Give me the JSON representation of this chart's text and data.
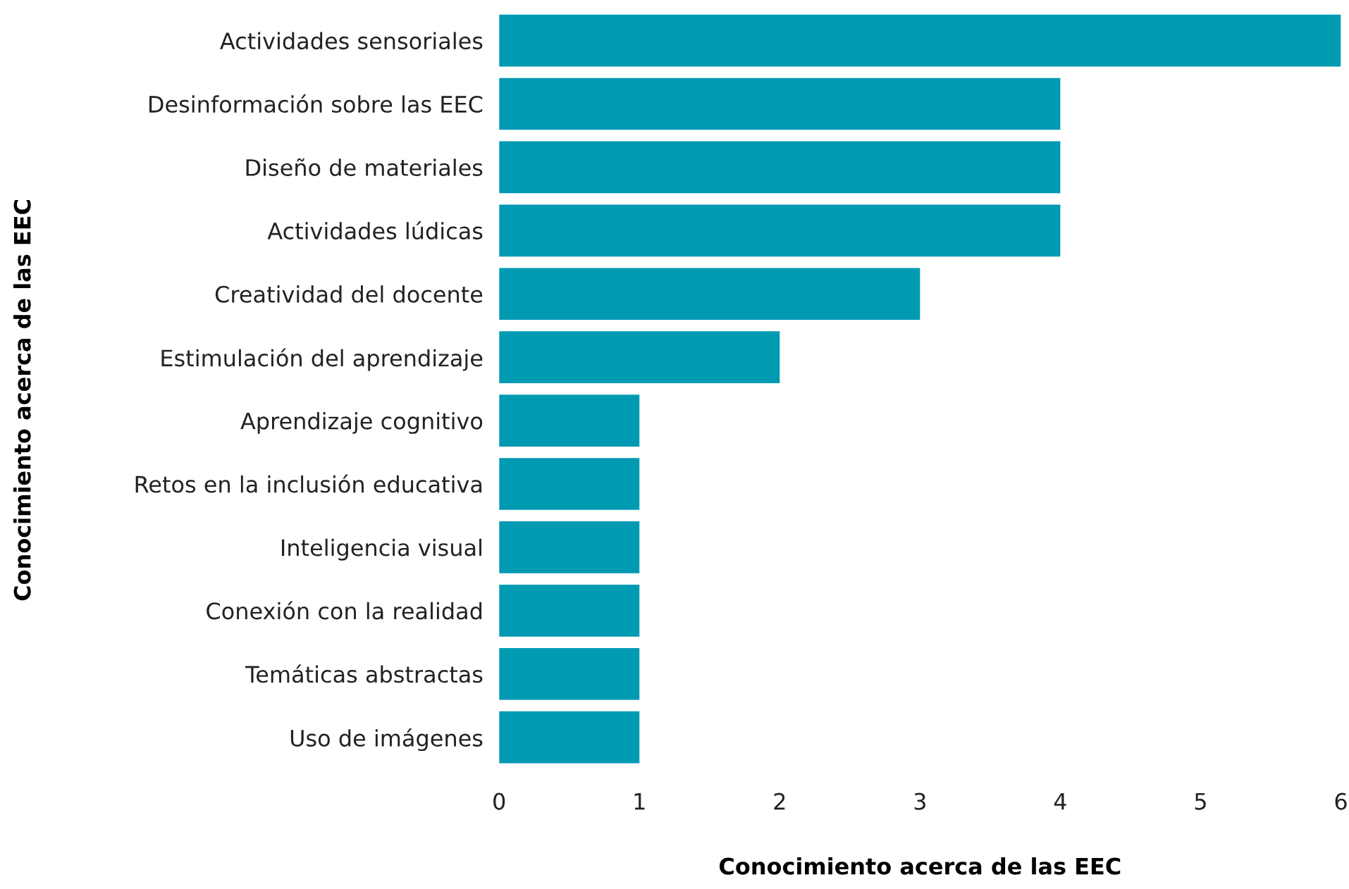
{
  "chart_data": {
    "type": "bar",
    "orientation": "horizontal",
    "xlabel": "Conocimiento acerca de las EEC",
    "ylabel": "Conocimiento acerca de las EEC",
    "categories": [
      "Actividades sensoriales",
      "Desinformación sobre las EEC",
      "Diseño de materiales",
      "Actividades lúdicas",
      "Creatividad del docente",
      "Estimulación del aprendizaje",
      "Aprendizaje cognitivo",
      "Retos en la inclusión educativa",
      "Inteligencia visual",
      "Conexión con la realidad",
      "Temáticas abstractas",
      "Uso de imágenes"
    ],
    "values": [
      6,
      4,
      4,
      4,
      3,
      2,
      1,
      1,
      1,
      1,
      1,
      1
    ],
    "color": "#009ab3",
    "xlim": [
      0,
      6
    ],
    "xticks": [
      0,
      1,
      2,
      3,
      4,
      5,
      6
    ],
    "grid": false,
    "legend": false
  }
}
